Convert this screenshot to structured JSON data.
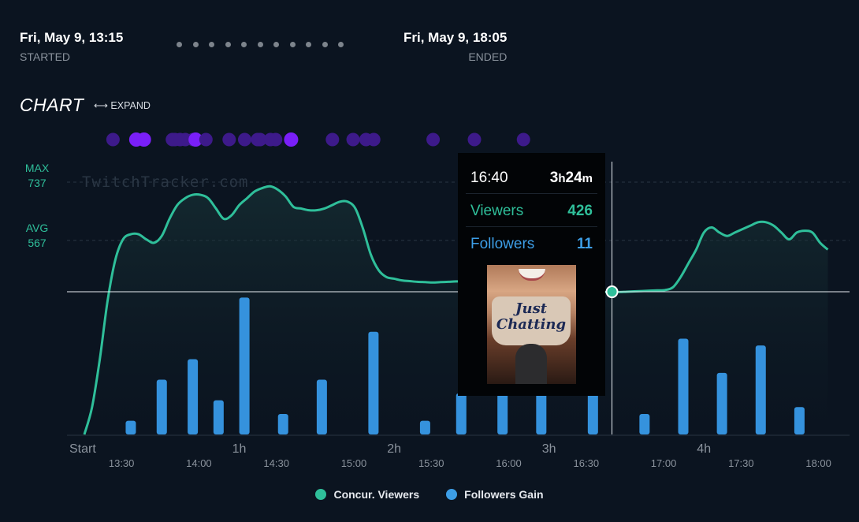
{
  "header": {
    "start_time": "Fri, May 9, 13:15",
    "start_label": "STARTED",
    "end_time": "Fri, May 9, 18:05",
    "end_label": "ENDED"
  },
  "section": {
    "title": "CHART",
    "expand_label": "⟷ EXPAND"
  },
  "y_axis": {
    "max_label": "MAX",
    "max_value": "737",
    "avg_label": "AVG",
    "avg_value": "567"
  },
  "watermark": "TwitchTracker.com",
  "colors": {
    "background": "#0b1420",
    "viewers": "#2fbf9a",
    "followers": "#3d9ee6",
    "event_dot": "#6c1ff2"
  },
  "chart_data": {
    "type": "line",
    "x_unit": "minutes since stream start",
    "x_range": [
      0,
      290
    ],
    "ylim": [
      0,
      820
    ],
    "x_ticks_top": [
      {
        "x": 0,
        "label": "Start"
      },
      {
        "x": 60,
        "label": "1h"
      },
      {
        "x": 120,
        "label": "2h"
      },
      {
        "x": 180,
        "label": "3h"
      },
      {
        "x": 240,
        "label": "4h"
      }
    ],
    "x_ticks_bottom": [
      {
        "x": 15,
        "label": "13:30"
      },
      {
        "x": 45,
        "label": "14:00"
      },
      {
        "x": 75,
        "label": "14:30"
      },
      {
        "x": 105,
        "label": "15:00"
      },
      {
        "x": 135,
        "label": "15:30"
      },
      {
        "x": 165,
        "label": "16:00"
      },
      {
        "x": 195,
        "label": "16:30"
      },
      {
        "x": 225,
        "label": "17:00"
      },
      {
        "x": 255,
        "label": "17:30"
      },
      {
        "x": 285,
        "label": "18:00"
      }
    ],
    "reference_lines": [
      {
        "name": "MAX",
        "value": 737
      },
      {
        "name": "AVG",
        "value": 567
      }
    ],
    "series": [
      {
        "name": "Concur. Viewers",
        "x": [
          0,
          3,
          6,
          9,
          12,
          15,
          18,
          21,
          24,
          27,
          30,
          33,
          36,
          39,
          42,
          45,
          48,
          51,
          54,
          57,
          60,
          63,
          66,
          69,
          72,
          75,
          78,
          81,
          84,
          87,
          90,
          93,
          96,
          99,
          102,
          105,
          108,
          111,
          114,
          117,
          120,
          123,
          126,
          129,
          132,
          135,
          138,
          141,
          144,
          147,
          150,
          153,
          156,
          159,
          162,
          165,
          168,
          171,
          174,
          177,
          180,
          183,
          186,
          189,
          192,
          195,
          198,
          201,
          204,
          207,
          210,
          213,
          216,
          219,
          222,
          225,
          228,
          231,
          234,
          237,
          240,
          243,
          246,
          249,
          252,
          255,
          258,
          261,
          264,
          267,
          270,
          273,
          276,
          279,
          282,
          285,
          288
        ],
        "values": [
          0,
          80,
          220,
          390,
          510,
          570,
          585,
          585,
          570,
          560,
          580,
          630,
          670,
          690,
          700,
          700,
          690,
          660,
          630,
          640,
          670,
          690,
          710,
          720,
          725,
          715,
          695,
          665,
          660,
          655,
          655,
          660,
          670,
          680,
          680,
          660,
          600,
          525,
          480,
          460,
          455,
          450,
          448,
          446,
          445,
          444,
          445,
          446,
          447,
          447,
          446,
          445,
          444,
          443,
          442,
          440,
          440,
          440,
          440,
          440,
          438,
          436,
          432,
          428,
          424,
          420,
          418,
          416,
          416,
          416,
          417,
          418,
          419,
          420,
          421,
          422,
          430,
          460,
          500,
          540,
          590,
          605,
          590,
          580,
          590,
          600,
          610,
          620,
          620,
          610,
          590,
          570,
          590,
          595,
          590,
          560,
          540
        ]
      },
      {
        "name": "Followers Gain",
        "type": "bar",
        "x": [
          18,
          30,
          42,
          52,
          62,
          77,
          92,
          112,
          132,
          146,
          162,
          177,
          197,
          217,
          232,
          247,
          262,
          277
        ],
        "values": [
          2,
          8,
          11,
          5,
          20,
          3,
          8,
          15,
          2,
          6,
          6,
          14,
          11,
          3,
          14,
          9,
          13,
          4
        ]
      }
    ],
    "events_x": [
      5,
      14,
      17,
      28,
      29,
      31,
      33,
      36,
      37,
      41,
      50,
      56,
      61,
      62,
      66,
      68,
      74,
      90,
      98,
      103,
      106,
      129,
      145,
      164
    ],
    "events_x_note": "minutes since start of each category-change marker",
    "tooltip": {
      "time": "16:40",
      "duration_hours": "3",
      "duration_h_unit": "h",
      "duration_minutes": "24",
      "duration_m_unit": "m",
      "viewers_label": "Viewers",
      "viewers_value": "426",
      "followers_label": "Followers",
      "followers_value": "11",
      "category_line1": "Just",
      "category_line2": "Chatting",
      "at_x": 205
    }
  },
  "legend": {
    "viewers_label": "Concur. Viewers",
    "followers_label": "Followers Gain"
  }
}
